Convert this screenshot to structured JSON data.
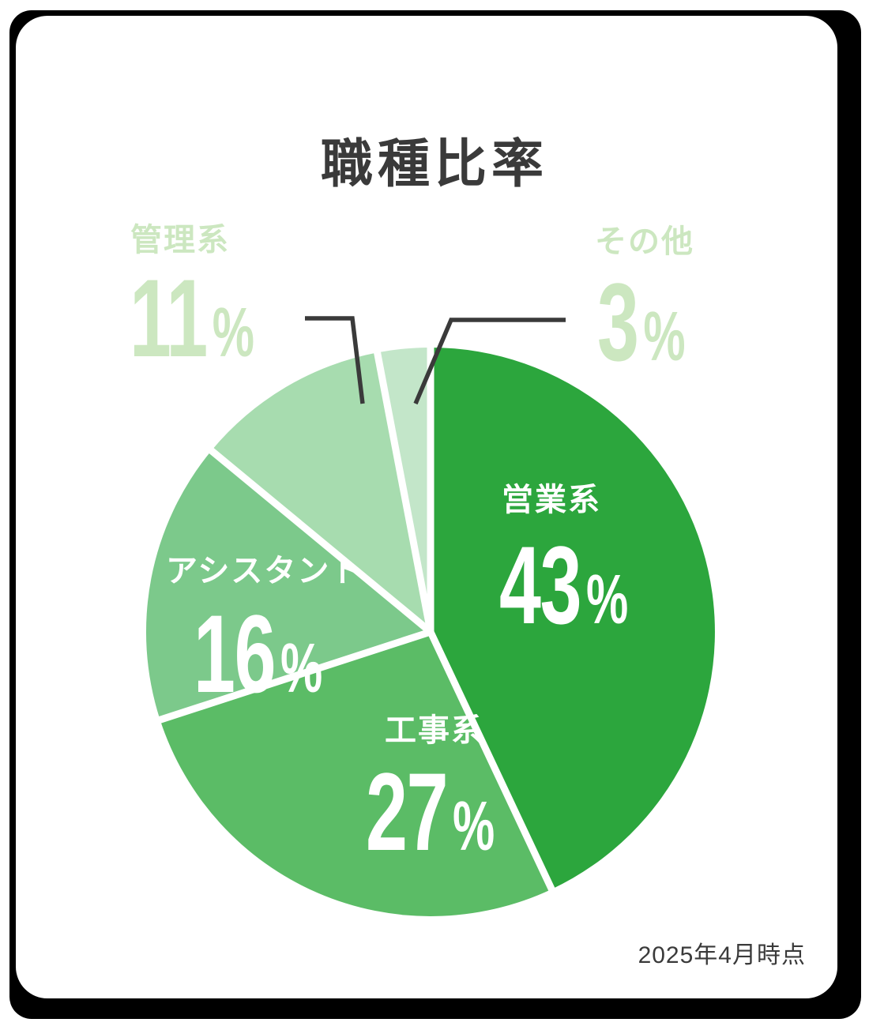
{
  "page": {
    "title": "職種比率",
    "footnote": "2025年4月時点"
  },
  "chart_data": {
    "type": "pie",
    "title": "職種比率",
    "unit": "%",
    "start_angle_deg": 0,
    "direction": "clockwise",
    "total": 100,
    "segments": [
      {
        "label": "営業系",
        "value": 43,
        "color": "#2ca63d",
        "label_color": "#ffffff",
        "label_position": "inside"
      },
      {
        "label": "工事系",
        "value": 27,
        "color": "#5bbc66",
        "label_color": "#ffffff",
        "label_position": "inside"
      },
      {
        "label": "アシスタント",
        "value": 16,
        "color": "#7cc98b",
        "label_color": "#ffffff",
        "label_position": "inside"
      },
      {
        "label": "管理系",
        "value": 11,
        "color": "#a7dcaf",
        "label_color": "#cce7c0",
        "label_position": "outside"
      },
      {
        "label": "その他",
        "value": 3,
        "color": "#c3e6c9",
        "label_color": "#cce7c0",
        "label_position": "outside"
      }
    ],
    "separator_color": "#ffffff",
    "leader_line_color": "#3a3a3a",
    "text_color": "#3a3a3a",
    "legend": "none",
    "background": "#ffffff"
  }
}
